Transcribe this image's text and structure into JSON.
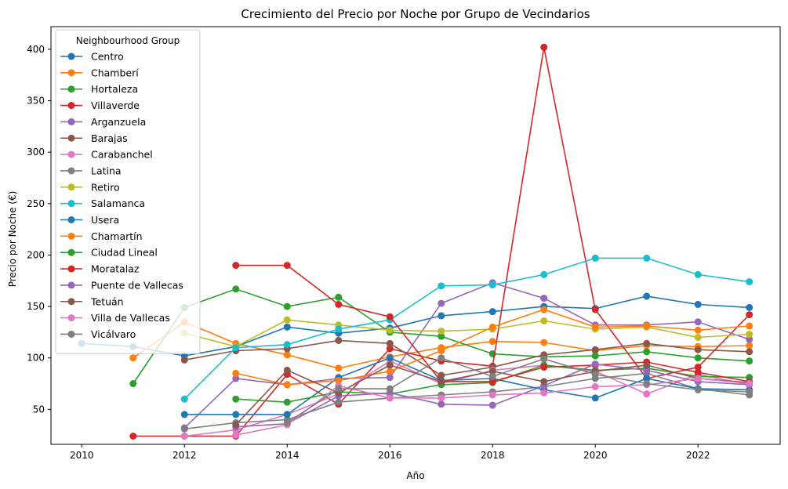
{
  "chart_data": {
    "type": "line",
    "title": "Crecimiento del Precio por Noche por Grupo de Vecindarios",
    "xlabel": "Año",
    "ylabel": "Precio por Noche (€)",
    "xlim": [
      2009.4,
      2023.6
    ],
    "ylim": [
      16,
      422
    ],
    "xticks": [
      2010,
      2012,
      2014,
      2016,
      2018,
      2020,
      2022
    ],
    "yticks": [
      50,
      100,
      150,
      200,
      250,
      300,
      350,
      400
    ],
    "grid": false,
    "legend": {
      "title": "Neighbourhood Group",
      "placement": "top-left"
    },
    "series": [
      {
        "name": "Centro",
        "color": "#1f77b4",
        "points": [
          [
            2010,
            114
          ],
          [
            2011,
            111
          ],
          [
            2012,
            102
          ],
          [
            2013,
            111
          ],
          [
            2014,
            130
          ],
          [
            2015,
            124
          ],
          [
            2016,
            129
          ],
          [
            2017,
            141
          ],
          [
            2018,
            145
          ],
          [
            2019,
            150
          ],
          [
            2020,
            148
          ],
          [
            2021,
            160
          ],
          [
            2022,
            152
          ],
          [
            2023,
            149
          ]
        ]
      },
      {
        "name": "Chamberí",
        "color": "#ff7f0e",
        "points": [
          [
            2011,
            100
          ],
          [
            2012,
            135
          ],
          [
            2013,
            114
          ],
          [
            2014,
            103
          ],
          [
            2015,
            90
          ],
          [
            2016,
            101
          ],
          [
            2017,
            110
          ],
          [
            2018,
            116
          ],
          [
            2019,
            115
          ],
          [
            2020,
            107
          ],
          [
            2021,
            112
          ],
          [
            2022,
            111
          ],
          [
            2023,
            112
          ]
        ]
      },
      {
        "name": "Hortaleza",
        "color": "#2ca02c",
        "points": [
          [
            2011,
            75
          ],
          [
            2012,
            149
          ],
          [
            2013,
            167
          ],
          [
            2014,
            150
          ],
          [
            2015,
            159
          ],
          [
            2016,
            125
          ],
          [
            2017,
            121
          ],
          [
            2018,
            104
          ],
          [
            2019,
            101
          ],
          [
            2020,
            102
          ],
          [
            2021,
            106
          ],
          [
            2022,
            100
          ],
          [
            2023,
            97
          ]
        ]
      },
      {
        "name": "Villaverde",
        "color": "#d62728",
        "points": [
          [
            2011,
            24
          ],
          [
            2012,
            24
          ],
          [
            2013,
            24
          ],
          [
            2014,
            84
          ],
          [
            2015,
            55
          ],
          [
            2016,
            109
          ],
          [
            2017,
            97
          ],
          [
            2018,
            92
          ],
          [
            2019,
            402
          ],
          [
            2020,
            147
          ],
          [
            2021,
            80
          ],
          [
            2022,
            91
          ],
          [
            2023,
            142
          ]
        ]
      },
      {
        "name": "Arganzuela",
        "color": "#9467bd",
        "points": [
          [
            2012,
            32
          ],
          [
            2013,
            80
          ],
          [
            2014,
            74
          ],
          [
            2015,
            80
          ],
          [
            2016,
            81
          ],
          [
            2017,
            153
          ],
          [
            2018,
            173
          ],
          [
            2019,
            158
          ],
          [
            2020,
            132
          ],
          [
            2021,
            132
          ],
          [
            2022,
            135
          ],
          [
            2023,
            118
          ]
        ]
      },
      {
        "name": "Barajas",
        "color": "#8c564b",
        "points": [
          [
            2012,
            98
          ],
          [
            2013,
            107
          ],
          [
            2014,
            109
          ],
          [
            2015,
            117
          ],
          [
            2016,
            114
          ],
          [
            2017,
            83
          ],
          [
            2018,
            91
          ],
          [
            2019,
            103
          ],
          [
            2020,
            108
          ],
          [
            2021,
            114
          ],
          [
            2022,
            108
          ],
          [
            2023,
            106
          ]
        ]
      },
      {
        "name": "Carabanchel",
        "color": "#e377c2",
        "points": [
          [
            2012,
            24
          ],
          [
            2013,
            30
          ],
          [
            2014,
            45
          ],
          [
            2015,
            65
          ],
          [
            2016,
            97
          ],
          [
            2017,
            75
          ],
          [
            2018,
            88
          ],
          [
            2019,
            93
          ],
          [
            2020,
            87
          ],
          [
            2021,
            65
          ],
          [
            2022,
            84
          ],
          [
            2023,
            74
          ]
        ]
      },
      {
        "name": "Latina",
        "color": "#7f7f7f",
        "points": [
          [
            2012,
            31
          ],
          [
            2013,
            37
          ],
          [
            2014,
            40
          ],
          [
            2015,
            57
          ],
          [
            2016,
            61
          ],
          [
            2017,
            64
          ],
          [
            2018,
            67
          ],
          [
            2019,
            72
          ],
          [
            2020,
            80
          ],
          [
            2021,
            85
          ],
          [
            2022,
            70
          ],
          [
            2023,
            64
          ]
        ]
      },
      {
        "name": "Retiro",
        "color": "#bcbd22",
        "points": [
          [
            2012,
            124
          ],
          [
            2013,
            111
          ],
          [
            2014,
            137
          ],
          [
            2015,
            132
          ],
          [
            2016,
            127
          ],
          [
            2017,
            126
          ],
          [
            2018,
            128
          ],
          [
            2019,
            136
          ],
          [
            2020,
            128
          ],
          [
            2021,
            130
          ],
          [
            2022,
            120
          ],
          [
            2023,
            123
          ]
        ]
      },
      {
        "name": "Salamanca",
        "color": "#17becf",
        "points": [
          [
            2012,
            60
          ],
          [
            2013,
            110
          ],
          [
            2014,
            113
          ],
          [
            2015,
            128
          ],
          [
            2016,
            137
          ],
          [
            2017,
            170
          ],
          [
            2018,
            171
          ],
          [
            2019,
            181
          ],
          [
            2020,
            197
          ],
          [
            2021,
            197
          ],
          [
            2022,
            181
          ],
          [
            2023,
            174
          ]
        ]
      },
      {
        "name": "Usera",
        "color": "#1f77b4",
        "points": [
          [
            2012,
            45
          ],
          [
            2013,
            45
          ],
          [
            2014,
            45
          ],
          [
            2015,
            81
          ],
          [
            2016,
            100
          ],
          [
            2017,
            78
          ],
          [
            2018,
            80
          ],
          [
            2019,
            69
          ],
          [
            2020,
            61
          ],
          [
            2021,
            80
          ],
          [
            2022,
            70
          ],
          [
            2023,
            69
          ]
        ]
      },
      {
        "name": "Chamartín",
        "color": "#ff7f0e",
        "points": [
          [
            2013,
            85
          ],
          [
            2014,
            74
          ],
          [
            2015,
            78
          ],
          [
            2016,
            87
          ],
          [
            2017,
            107
          ],
          [
            2018,
            130
          ],
          [
            2019,
            147
          ],
          [
            2020,
            130
          ],
          [
            2021,
            131
          ],
          [
            2022,
            127
          ],
          [
            2023,
            131
          ]
        ]
      },
      {
        "name": "Ciudad Lineal",
        "color": "#2ca02c",
        "points": [
          [
            2013,
            60
          ],
          [
            2014,
            57
          ],
          [
            2015,
            67
          ],
          [
            2016,
            65
          ],
          [
            2017,
            74
          ],
          [
            2018,
            76
          ],
          [
            2019,
            93
          ],
          [
            2020,
            88
          ],
          [
            2021,
            90
          ],
          [
            2022,
            82
          ],
          [
            2023,
            81
          ]
        ]
      },
      {
        "name": "Moratalaz",
        "color": "#d62728",
        "points": [
          [
            2013,
            190
          ],
          [
            2014,
            190
          ],
          [
            2015,
            152
          ],
          [
            2016,
            140
          ],
          [
            2017,
            77
          ],
          [
            2018,
            77
          ],
          [
            2019,
            91
          ],
          [
            2020,
            93
          ],
          [
            2021,
            96
          ],
          [
            2022,
            86
          ],
          [
            2023,
            77
          ]
        ]
      },
      {
        "name": "Puente de Vallecas",
        "color": "#9467bd",
        "points": [
          [
            2013,
            33
          ],
          [
            2014,
            36
          ],
          [
            2015,
            63
          ],
          [
            2016,
            66
          ],
          [
            2017,
            55
          ],
          [
            2018,
            54
          ],
          [
            2019,
            73
          ],
          [
            2020,
            94
          ],
          [
            2021,
            88
          ],
          [
            2022,
            77
          ],
          [
            2023,
            74
          ]
        ]
      },
      {
        "name": "Tetuán",
        "color": "#8c564b",
        "points": [
          [
            2013,
            35
          ],
          [
            2014,
            88
          ],
          [
            2015,
            66
          ],
          [
            2016,
            93
          ],
          [
            2017,
            77
          ],
          [
            2018,
            87
          ],
          [
            2019,
            77
          ],
          [
            2020,
            87
          ],
          [
            2021,
            93
          ],
          [
            2022,
            80
          ],
          [
            2023,
            76
          ]
        ]
      },
      {
        "name": "Villa de Vallecas",
        "color": "#e377c2",
        "points": [
          [
            2013,
            25
          ],
          [
            2014,
            35
          ],
          [
            2015,
            73
          ],
          [
            2016,
            61
          ],
          [
            2017,
            61
          ],
          [
            2018,
            64
          ],
          [
            2019,
            66
          ],
          [
            2020,
            72
          ],
          [
            2021,
            74
          ],
          [
            2022,
            80
          ],
          [
            2023,
            75
          ]
        ]
      },
      {
        "name": "Vicálvaro",
        "color": "#7f7f7f",
        "points": [
          [
            2014,
            37
          ],
          [
            2015,
            70
          ],
          [
            2016,
            70
          ],
          [
            2017,
            100
          ],
          [
            2018,
            82
          ],
          [
            2019,
            99
          ],
          [
            2020,
            84
          ],
          [
            2021,
            75
          ],
          [
            2022,
            69
          ],
          [
            2023,
            67
          ]
        ]
      }
    ]
  }
}
